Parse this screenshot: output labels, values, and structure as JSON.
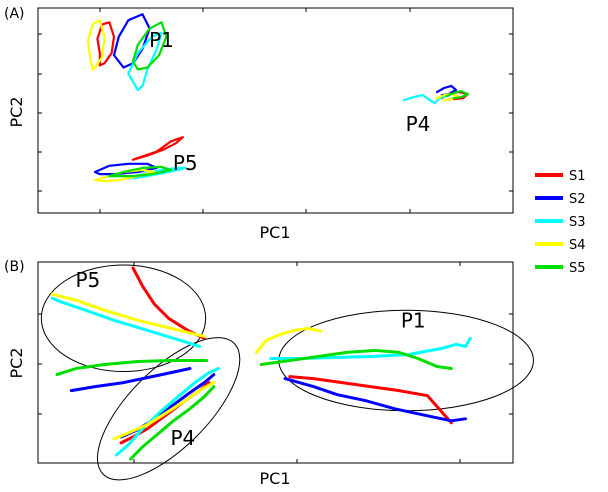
{
  "colors": {
    "S1": "#ff0000",
    "S2": "#0000ff",
    "S3": "#00ffff",
    "S4": "#ffff00",
    "S5": "#00dd00"
  },
  "legend": [
    "S1",
    "S2",
    "S3",
    "S4",
    "S5"
  ],
  "chart_data": [
    {
      "type": "line",
      "panel_label": "(A)",
      "xlabel": "PC1",
      "ylabel": "PC2",
      "xlim": [
        0,
        100
      ],
      "ylim": [
        0,
        100
      ],
      "grid": false,
      "legend_placement": "right",
      "annotations": [
        {
          "text": "P1",
          "x": 26,
          "y": 81
        },
        {
          "text": "P5",
          "x": 31,
          "y": 21
        },
        {
          "text": "P4",
          "x": 80,
          "y": 40
        }
      ],
      "series": [
        {
          "name": "S1",
          "group": "P1",
          "x": [
            13,
            12.5,
            13.5,
            15,
            16,
            15.5,
            14,
            13
          ],
          "y": [
            78,
            85,
            92,
            93,
            86,
            78,
            73,
            72
          ]
        },
        {
          "name": "S2",
          "group": "P1",
          "x": [
            16,
            17,
            19,
            22,
            23.5,
            22,
            20,
            18
          ],
          "y": [
            77,
            86,
            94,
            97,
            90,
            80,
            73,
            71
          ]
        },
        {
          "name": "S3",
          "group": "P1",
          "x": [
            19,
            21,
            24,
            26,
            25,
            23,
            22,
            21
          ],
          "y": [
            68,
            78,
            86,
            88,
            80,
            70,
            62,
            60
          ]
        },
        {
          "name": "S4",
          "group": "P1",
          "x": [
            11,
            10.5,
            11.5,
            13,
            14,
            13.5,
            12,
            11.5
          ],
          "y": [
            75,
            84,
            92,
            94,
            86,
            76,
            71,
            70
          ]
        },
        {
          "name": "S5",
          "group": "P1",
          "x": [
            20,
            21,
            23.5,
            26,
            27,
            25.5,
            23,
            21
          ],
          "y": [
            74,
            82,
            90,
            93,
            86,
            77,
            71,
            70
          ]
        },
        {
          "name": "S1",
          "group": "P5",
          "x": [
            20,
            23,
            26.5,
            29,
            30.5,
            28,
            25
          ],
          "y": [
            26,
            28,
            31,
            34,
            37,
            35,
            30
          ]
        },
        {
          "name": "S2",
          "group": "P5",
          "x": [
            12,
            15,
            19,
            23,
            25,
            21,
            16,
            13
          ],
          "y": [
            20,
            23,
            24,
            24,
            22,
            20,
            19,
            19
          ]
        },
        {
          "name": "S3",
          "group": "P5",
          "x": [
            19,
            22,
            26,
            29.5,
            31,
            27.5,
            23,
            20
          ],
          "y": [
            17,
            19,
            21,
            22,
            22,
            20,
            18,
            17
          ]
        },
        {
          "name": "S4",
          "group": "P5",
          "x": [
            12,
            15,
            18,
            22,
            24.5,
            21,
            17,
            14
          ],
          "y": [
            16,
            18,
            20,
            21,
            20,
            18,
            16,
            15.5
          ]
        },
        {
          "name": "S5",
          "group": "P5",
          "x": [
            15,
            18,
            22,
            26,
            28,
            24,
            20
          ],
          "y": [
            18,
            20,
            22,
            22.5,
            21,
            19,
            18
          ]
        },
        {
          "name": "S1",
          "group": "P4",
          "x": [
            85,
            86.5,
            88.5,
            90.5,
            89.5,
            87.5
          ],
          "y": [
            56,
            58,
            59,
            58,
            56,
            55.5
          ]
        },
        {
          "name": "S2",
          "group": "P4",
          "x": [
            84,
            85.5,
            87,
            88,
            86.5,
            85
          ],
          "y": [
            59,
            61,
            62,
            60,
            58,
            57.5
          ]
        },
        {
          "name": "S3",
          "group": "P4",
          "x": [
            77,
            79,
            81,
            82.5,
            83.5,
            84.5,
            86
          ],
          "y": [
            55,
            56.5,
            57.5,
            55,
            53.5,
            56,
            57
          ]
        },
        {
          "name": "S4",
          "group": "P4",
          "x": [
            84,
            85.5,
            87,
            88.5,
            87,
            85.5
          ],
          "y": [
            56,
            57.5,
            58,
            57,
            55.5,
            55
          ]
        },
        {
          "name": "S5",
          "group": "P4",
          "x": [
            86,
            87.5,
            89,
            90.5,
            89,
            87.5
          ],
          "y": [
            57,
            58.5,
            59.5,
            58,
            56.5,
            56
          ]
        }
      ]
    },
    {
      "type": "line",
      "panel_label": "(B)",
      "xlabel": "PC1",
      "ylabel": "PC2",
      "xlim": [
        0,
        100
      ],
      "ylim": [
        0,
        100
      ],
      "grid": false,
      "annotations": [
        {
          "text": "P5",
          "x": 10.5,
          "y": 87.5
        },
        {
          "text": "P1",
          "x": 79,
          "y": 67.5
        },
        {
          "text": "P4",
          "x": 30.5,
          "y": 9
        }
      ],
      "ellipses": [
        {
          "group": "P5",
          "cx": 18,
          "cy": 72,
          "rx": 17.3,
          "ry": 26.5,
          "rotate": 0
        },
        {
          "group": "P1",
          "cx": 77.5,
          "cy": 51,
          "rx": 26.8,
          "ry": 25,
          "rotate": 0
        },
        {
          "group": "P4",
          "cx": 27.5,
          "cy": 27,
          "rx": 30,
          "ry": 9.2,
          "rotate": -45
        }
      ],
      "series": [
        {
          "name": "S1",
          "group": "P5",
          "x": [
            20,
            22,
            24.5,
            27.5,
            31.5,
            35
          ],
          "y": [
            97,
            88,
            79,
            72,
            66,
            62
          ]
        },
        {
          "name": "S3",
          "group": "P5",
          "x": [
            3,
            5,
            10,
            16,
            23,
            30,
            34
          ],
          "y": [
            82,
            80,
            76,
            71,
            66,
            61,
            58
          ]
        },
        {
          "name": "S4",
          "group": "P5",
          "x": [
            3,
            8,
            14,
            21,
            28,
            35
          ],
          "y": [
            84,
            81,
            76,
            71,
            67,
            63
          ]
        },
        {
          "name": "S5",
          "group": "P5",
          "x": [
            4,
            8,
            14,
            21,
            28,
            35.5
          ],
          "y": [
            44,
            47,
            49,
            50.5,
            51,
            51
          ]
        },
        {
          "name": "S2",
          "group": "P5",
          "x": [
            7,
            12,
            18,
            23,
            28,
            32
          ],
          "y": [
            36,
            38,
            40,
            42.5,
            45,
            47
          ]
        },
        {
          "name": "S1",
          "group": "P1",
          "x": [
            53,
            58,
            64,
            70,
            76,
            82,
            87
          ],
          "y": [
            43,
            42,
            40,
            38,
            36,
            33.5,
            20
          ]
        },
        {
          "name": "S2",
          "group": "P1",
          "x": [
            52,
            58,
            63,
            69,
            75,
            81,
            87,
            90
          ],
          "y": [
            42,
            38,
            34,
            31,
            27,
            24,
            21,
            22
          ]
        },
        {
          "name": "S3",
          "group": "P1",
          "x": [
            49,
            55,
            62,
            70,
            78,
            85,
            88,
            90,
            91
          ],
          "y": [
            52,
            52,
            52.5,
            53,
            54,
            57,
            59,
            58,
            62
          ]
        },
        {
          "name": "S4",
          "group": "P1",
          "x": [
            46,
            48,
            51,
            54,
            57,
            59.5
          ],
          "y": [
            55,
            61,
            64,
            66,
            67,
            65.5
          ]
        },
        {
          "name": "S5",
          "group": "P1",
          "x": [
            47,
            53,
            59,
            65,
            71,
            76,
            80,
            84,
            87
          ],
          "y": [
            49,
            51,
            53,
            55,
            56,
            55,
            52,
            48,
            47
          ]
        },
        {
          "name": "S1",
          "group": "P4",
          "x": [
            17.5,
            20,
            23,
            27,
            31,
            34,
            36
          ],
          "y": [
            10,
            13,
            17,
            24,
            31,
            36,
            40
          ]
        },
        {
          "name": "S2",
          "group": "P4",
          "x": [
            17.5,
            20.5,
            24,
            28,
            32,
            35,
            37
          ],
          "y": [
            13,
            16,
            21,
            28,
            35,
            40,
            44
          ]
        },
        {
          "name": "S3",
          "group": "P4",
          "x": [
            16.5,
            19,
            22,
            26,
            30,
            33,
            36,
            38
          ],
          "y": [
            4,
            9,
            17,
            26,
            34,
            40,
            45,
            47
          ]
        },
        {
          "name": "S4",
          "group": "P4",
          "x": [
            16,
            19,
            23,
            27,
            31,
            34,
            37
          ],
          "y": [
            12,
            15,
            19,
            25,
            31,
            36,
            40
          ]
        },
        {
          "name": "S5",
          "group": "P4",
          "x": [
            19.5,
            22,
            25,
            28.5,
            32,
            35,
            37
          ],
          "y": [
            2,
            8,
            14,
            21,
            27,
            33,
            38
          ]
        }
      ]
    }
  ]
}
